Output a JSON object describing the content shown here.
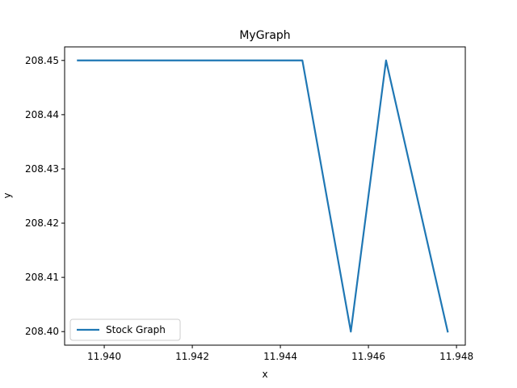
{
  "chart_data": {
    "type": "line",
    "title": "MyGraph",
    "xlabel": "x",
    "ylabel": "y",
    "xlim": [
      11.9391,
      11.9482
    ],
    "ylim": [
      208.3975,
      208.4525
    ],
    "x_ticks": [
      11.94,
      11.942,
      11.944,
      11.946,
      11.948
    ],
    "x_tick_labels": [
      "11.940",
      "11.942",
      "11.944",
      "11.946",
      "11.948"
    ],
    "y_ticks": [
      208.4,
      208.41,
      208.42,
      208.43,
      208.44,
      208.45
    ],
    "y_tick_labels": [
      "208.40",
      "208.41",
      "208.42",
      "208.43",
      "208.44",
      "208.45"
    ],
    "grid": false,
    "legend_position": "lower-left",
    "series": [
      {
        "name": "Stock Graph",
        "color": "#1f77b4",
        "x": [
          11.9394,
          11.9445,
          11.9456,
          11.9464,
          11.9478
        ],
        "y": [
          208.45,
          208.45,
          208.4,
          208.45,
          208.4
        ]
      }
    ]
  }
}
